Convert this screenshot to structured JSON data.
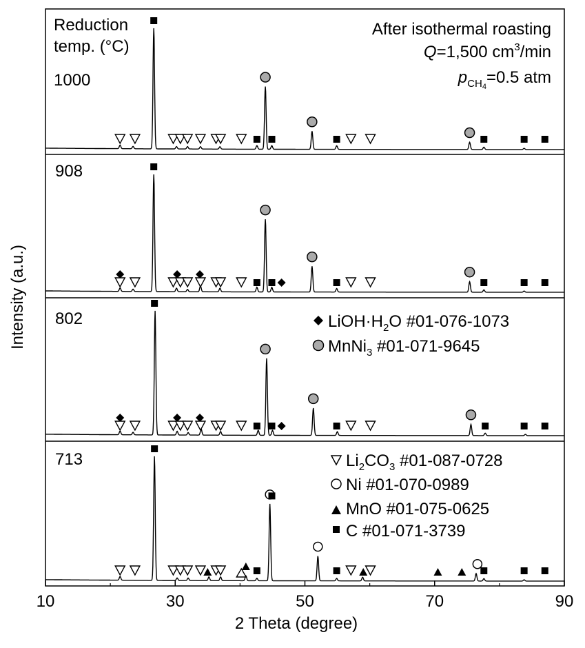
{
  "chart_data": {
    "type": "line",
    "xlabel": "2 Theta (degree)",
    "ylabel": "Intensity (a.u.)",
    "xlim": [
      10,
      90
    ],
    "x_ticks": [
      "10",
      "30",
      "50",
      "70",
      "90"
    ],
    "header_left": [
      "Reduction",
      "temp. (°C)"
    ],
    "conditions": {
      "line1": "After isothermal roasting",
      "q_symbol": "Q",
      "q_value": "=1,500 cm",
      "q_sup": "3",
      "q_unit": "/min",
      "p_symbol": "p",
      "p_sub": "CH",
      "p_sub2": "4",
      "p_value": "=0.5 atm"
    },
    "legend": {
      "lioh": "LiOH·H",
      "lioh_sub": "2",
      "lioh_rest": "O #01-076-1073",
      "mnni3": "MnNi",
      "mnni3_sub": "3",
      "mnni3_rest": " #01-071-9645",
      "li2co3": "Li",
      "li2co3_sub": "2",
      "li2co3_rest": "CO",
      "li2co3_sub2": "3",
      "li2co3_rest2": " #01-087-0728",
      "ni": "Ni #01-070-0989",
      "mno": "MnO #01-075-0625",
      "c": "C #01-071-3739"
    },
    "series": [
      {
        "name": "1000",
        "peaks": [
          {
            "x": 21.5,
            "h": 0.03
          },
          {
            "x": 23.5,
            "h": 0.02
          },
          {
            "x": 26.7,
            "h": 1.0
          },
          {
            "x": 30.2,
            "h": 0.02
          },
          {
            "x": 31.9,
            "h": 0.02
          },
          {
            "x": 33.9,
            "h": 0.02
          },
          {
            "x": 36.9,
            "h": 0.02
          },
          {
            "x": 42.6,
            "h": 0.03
          },
          {
            "x": 43.9,
            "h": 0.52
          },
          {
            "x": 44.9,
            "h": 0.03
          },
          {
            "x": 51.1,
            "h": 0.15
          },
          {
            "x": 54.9,
            "h": 0.03
          },
          {
            "x": 75.4,
            "h": 0.06
          },
          {
            "x": 77.6,
            "h": 0.02
          },
          {
            "x": 83.8,
            "h": 0.01
          }
        ],
        "markers": [
          {
            "x": 26.7,
            "s": "C"
          },
          {
            "x": 43.9,
            "s": "MnNi3"
          },
          {
            "x": 51.1,
            "s": "MnNi3"
          },
          {
            "x": 75.4,
            "s": "MnNi3"
          },
          {
            "x": 21.5,
            "s": "Li2CO3"
          },
          {
            "x": 23.8,
            "s": "Li2CO3"
          },
          {
            "x": 29.7,
            "s": "Li2CO3"
          },
          {
            "x": 30.8,
            "s": "Li2CO3"
          },
          {
            "x": 31.9,
            "s": "Li2CO3"
          },
          {
            "x": 33.9,
            "s": "Li2CO3"
          },
          {
            "x": 36.3,
            "s": "Li2CO3"
          },
          {
            "x": 37.0,
            "s": "Li2CO3"
          },
          {
            "x": 40.2,
            "s": "Li2CO3"
          },
          {
            "x": 57.1,
            "s": "Li2CO3"
          },
          {
            "x": 60.1,
            "s": "Li2CO3"
          },
          {
            "x": 42.6,
            "s": "C"
          },
          {
            "x": 44.9,
            "s": "C"
          },
          {
            "x": 54.9,
            "s": "C"
          },
          {
            "x": 77.6,
            "s": "C"
          },
          {
            "x": 83.8,
            "s": "C"
          },
          {
            "x": 87.0,
            "s": "C"
          }
        ]
      },
      {
        "name": "908",
        "peaks": [
          {
            "x": 21.5,
            "h": 0.03
          },
          {
            "x": 23.5,
            "h": 0.02
          },
          {
            "x": 26.7,
            "h": 1.0
          },
          {
            "x": 30.2,
            "h": 0.03
          },
          {
            "x": 31.9,
            "h": 0.02
          },
          {
            "x": 33.9,
            "h": 0.05
          },
          {
            "x": 36.9,
            "h": 0.03
          },
          {
            "x": 42.6,
            "h": 0.04
          },
          {
            "x": 43.9,
            "h": 0.62
          },
          {
            "x": 44.9,
            "h": 0.04
          },
          {
            "x": 51.1,
            "h": 0.22
          },
          {
            "x": 54.9,
            "h": 0.03
          },
          {
            "x": 75.4,
            "h": 0.09
          },
          {
            "x": 77.6,
            "h": 0.02
          },
          {
            "x": 83.8,
            "h": 0.01
          }
        ],
        "markers": [
          {
            "x": 26.7,
            "s": "C"
          },
          {
            "x": 43.9,
            "s": "MnNi3"
          },
          {
            "x": 51.1,
            "s": "MnNi3"
          },
          {
            "x": 75.4,
            "s": "MnNi3"
          },
          {
            "x": 21.5,
            "s": "LiOH"
          },
          {
            "x": 30.3,
            "s": "LiOH"
          },
          {
            "x": 33.8,
            "s": "LiOH"
          },
          {
            "x": 46.4,
            "s": "LiOH"
          },
          {
            "x": 21.5,
            "s": "Li2CO3"
          },
          {
            "x": 23.8,
            "s": "Li2CO3"
          },
          {
            "x": 29.7,
            "s": "Li2CO3"
          },
          {
            "x": 30.8,
            "s": "Li2CO3"
          },
          {
            "x": 31.9,
            "s": "Li2CO3"
          },
          {
            "x": 33.9,
            "s": "Li2CO3"
          },
          {
            "x": 36.3,
            "s": "Li2CO3"
          },
          {
            "x": 37.0,
            "s": "Li2CO3"
          },
          {
            "x": 40.2,
            "s": "Li2CO3"
          },
          {
            "x": 57.1,
            "s": "Li2CO3"
          },
          {
            "x": 60.1,
            "s": "Li2CO3"
          },
          {
            "x": 42.6,
            "s": "C"
          },
          {
            "x": 44.9,
            "s": "C"
          },
          {
            "x": 54.9,
            "s": "C"
          },
          {
            "x": 77.6,
            "s": "C"
          },
          {
            "x": 83.8,
            "s": "C"
          },
          {
            "x": 87.0,
            "s": "C"
          }
        ]
      },
      {
        "name": "802",
        "peaks": [
          {
            "x": 21.5,
            "h": 0.03
          },
          {
            "x": 23.5,
            "h": 0.02
          },
          {
            "x": 26.9,
            "h": 1.0
          },
          {
            "x": 30.3,
            "h": 0.03
          },
          {
            "x": 32.0,
            "h": 0.02
          },
          {
            "x": 34.0,
            "h": 0.05
          },
          {
            "x": 37.0,
            "h": 0.03
          },
          {
            "x": 42.8,
            "h": 0.04
          },
          {
            "x": 44.1,
            "h": 0.62
          },
          {
            "x": 45.0,
            "h": 0.04
          },
          {
            "x": 51.3,
            "h": 0.22
          },
          {
            "x": 55.0,
            "h": 0.03
          },
          {
            "x": 75.6,
            "h": 0.09
          },
          {
            "x": 77.8,
            "h": 0.02
          },
          {
            "x": 84.0,
            "h": 0.01
          }
        ],
        "markers": [
          {
            "x": 26.8,
            "s": "C"
          },
          {
            "x": 43.9,
            "s": "MnNi3"
          },
          {
            "x": 51.3,
            "s": "MnNi3"
          },
          {
            "x": 75.6,
            "s": "MnNi3"
          },
          {
            "x": 21.5,
            "s": "LiOH"
          },
          {
            "x": 30.3,
            "s": "LiOH"
          },
          {
            "x": 33.8,
            "s": "LiOH"
          },
          {
            "x": 46.4,
            "s": "LiOH"
          },
          {
            "x": 21.5,
            "s": "Li2CO3"
          },
          {
            "x": 23.8,
            "s": "Li2CO3"
          },
          {
            "x": 29.7,
            "s": "Li2CO3"
          },
          {
            "x": 30.8,
            "s": "Li2CO3"
          },
          {
            "x": 31.9,
            "s": "Li2CO3"
          },
          {
            "x": 33.9,
            "s": "Li2CO3"
          },
          {
            "x": 36.3,
            "s": "Li2CO3"
          },
          {
            "x": 37.0,
            "s": "Li2CO3"
          },
          {
            "x": 40.2,
            "s": "Li2CO3"
          },
          {
            "x": 57.1,
            "s": "Li2CO3"
          },
          {
            "x": 60.1,
            "s": "Li2CO3"
          },
          {
            "x": 42.6,
            "s": "C"
          },
          {
            "x": 44.9,
            "s": "C"
          },
          {
            "x": 54.9,
            "s": "C"
          },
          {
            "x": 77.8,
            "s": "C"
          },
          {
            "x": 83.8,
            "s": "C"
          },
          {
            "x": 87.0,
            "s": "C"
          }
        ]
      },
      {
        "name": "713",
        "peaks": [
          {
            "x": 21.5,
            "h": 0.03
          },
          {
            "x": 26.8,
            "h": 1.0
          },
          {
            "x": 30.3,
            "h": 0.02
          },
          {
            "x": 32.0,
            "h": 0.02
          },
          {
            "x": 35.2,
            "h": 0.03
          },
          {
            "x": 37.0,
            "h": 0.03
          },
          {
            "x": 40.9,
            "h": 0.04
          },
          {
            "x": 42.6,
            "h": 0.02
          },
          {
            "x": 44.6,
            "h": 0.62
          },
          {
            "x": 52.0,
            "h": 0.2
          },
          {
            "x": 54.9,
            "h": 0.02
          },
          {
            "x": 58.9,
            "h": 0.03
          },
          {
            "x": 76.4,
            "h": 0.06
          },
          {
            "x": 77.6,
            "h": 0.02
          },
          {
            "x": 83.8,
            "h": 0.01
          }
        ],
        "markers": [
          {
            "x": 26.8,
            "s": "C"
          },
          {
            "x": 44.6,
            "s": "Ni"
          },
          {
            "x": 52.0,
            "s": "Ni"
          },
          {
            "x": 76.6,
            "s": "Ni"
          },
          {
            "x": 21.5,
            "s": "Li2CO3"
          },
          {
            "x": 23.8,
            "s": "Li2CO3"
          },
          {
            "x": 29.7,
            "s": "Li2CO3"
          },
          {
            "x": 30.8,
            "s": "Li2CO3"
          },
          {
            "x": 31.9,
            "s": "Li2CO3"
          },
          {
            "x": 33.9,
            "s": "Li2CO3"
          },
          {
            "x": 36.3,
            "s": "Li2CO3"
          },
          {
            "x": 37.0,
            "s": "Li2CO3"
          },
          {
            "x": 57.1,
            "s": "Li2CO3"
          },
          {
            "x": 60.1,
            "s": "Li2CO3"
          },
          {
            "x": 35.0,
            "s": "MnO"
          },
          {
            "x": 40.9,
            "s": "MnO"
          },
          {
            "x": 59.0,
            "s": "MnO"
          },
          {
            "x": 70.5,
            "s": "MnO"
          },
          {
            "x": 74.2,
            "s": "MnO"
          },
          {
            "x": 40.2,
            "s": "MnOopen"
          },
          {
            "x": 42.6,
            "s": "C"
          },
          {
            "x": 44.9,
            "s": "C"
          },
          {
            "x": 54.9,
            "s": "C"
          },
          {
            "x": 77.6,
            "s": "C"
          },
          {
            "x": 83.8,
            "s": "C"
          },
          {
            "x": 87.0,
            "s": "C"
          }
        ]
      }
    ]
  }
}
